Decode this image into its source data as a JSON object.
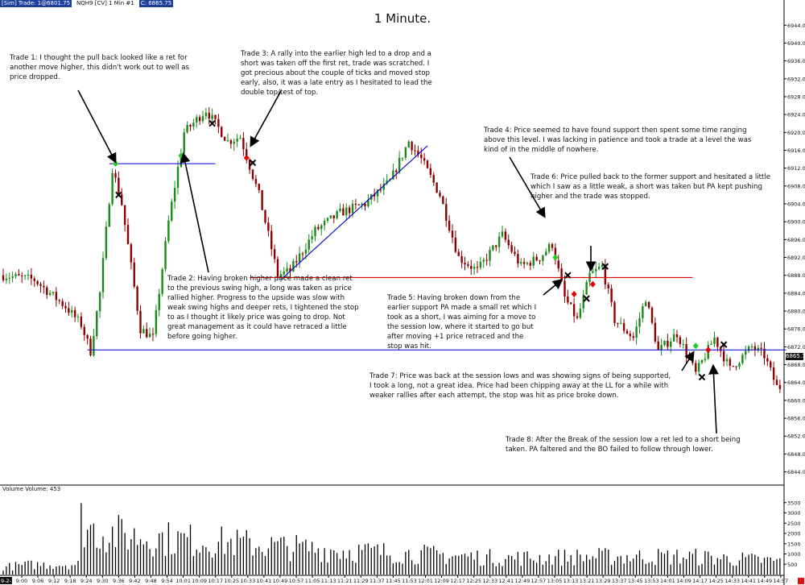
{
  "header": {
    "instrument": "[Sim]  Trade: 1@6801.75",
    "symbol": "NQH9 [CV]  1 Min  #1",
    "last": "C: 6865.75"
  },
  "title": "1 Minute.",
  "volume_label": "Volume  Volume: 453",
  "last_price_tag": "6865.75",
  "annotations": {
    "trade1": "Trade 1:  I thought the pull back looked like a ret for another move higher, this didn't work out to well as price dropped.",
    "trade2": "Trade 2:  Having broken higher price made a clean ret to the previous swing high, a long was taken as price rallied higher.  Progress to the upside was slow with weak swing highs and deeper rets, I tightened the stop to as I thought it likely price was going to drop.  Not great management as it could have retraced a little before going higher.",
    "trade3": "Trade 3:  A rally into the earlier high led to a drop and a short was taken off the first ret, trade was scratched.  I got precious about the couple of ticks and moved stop early, also, it was a late entry as I hesitated to lead the double top/test of top.",
    "trade4": "Trade 4:  Price seemed to have found support then spent some time ranging above this level.  I was lacking in patience and took a trade at a level the was kind of in the middle of nowhere.",
    "trade5": "Trade 5:  Having broken down from the earlier support PA made a small ret which I took as a short, I was aiming for a move to the session low, where it started to go but after moving +1 price retraced and the stop was hit.",
    "trade6": "Trade 6:  Price pulled back to the former support and hesitated a little which I saw as a little weak, a short was taken but PA kept pushing higher and the trade was stopped.",
    "trade7": "Trade 7:  Price was back at the session lows and was showing signs of being supported, I took a long, not a great idea.  Price had been chipping away at the LL for a while with weaker rallies after each attempt, the stop was hit as price broke down.",
    "trade8": "Trade 8:  After the Break of the session low a ret led to a short being taken.  PA faltered and the BO failed to follow through lower."
  },
  "chart_data": {
    "type": "candlestick",
    "title": "1 Minute.",
    "interval": "1 Min",
    "y_axis_ticks": [
      6944.0,
      6940.0,
      6936.0,
      6932.0,
      6928.0,
      6924.0,
      6920.0,
      6916.0,
      6912.0,
      6908.0,
      6904.0,
      6900.0,
      6896.0,
      6892.0,
      6888.0,
      6884.0,
      6880.0,
      6876.0,
      6872.0,
      6868.0,
      6864.0,
      6860.0,
      6856.0,
      6852.0,
      6848.0,
      6844.0
    ],
    "ylim": [
      6841.4,
      6948.2
    ],
    "x_axis_ticks": [
      "9:00",
      "9:06",
      "9:12",
      "9:18",
      "9:24",
      "9:30",
      "9:36",
      "9:42",
      "9:48",
      "9:54",
      "10:01",
      "10:09",
      "10:17",
      "10:25",
      "10:33",
      "10:41",
      "10:49",
      "10:57",
      "11:05",
      "11:13",
      "11:21",
      "11:29",
      "11:37",
      "11:45",
      "11:53",
      "12:01",
      "12:09",
      "12:17",
      "12:25",
      "12:33",
      "12:41",
      "12:49",
      "12:57",
      "13:05",
      "13:13",
      "13:21",
      "13:29",
      "13:37",
      "13:45",
      "13:53",
      "14:01",
      "14:09",
      "14:17",
      "14:25",
      "14:33",
      "14:41",
      "14:49",
      "14:57"
    ],
    "x_axis_start_label": "9-2-1",
    "volume_ticks": [
      3500,
      3000,
      2500,
      2000,
      1500,
      1000,
      500
    ],
    "volume_ylim": [
      0,
      4000
    ],
    "price_path_anchors": [
      [
        0,
        6888
      ],
      [
        10,
        6887
      ],
      [
        20,
        6881
      ],
      [
        25,
        6877
      ],
      [
        28,
        6871
      ],
      [
        31,
        6884
      ],
      [
        35,
        6912
      ],
      [
        38,
        6904
      ],
      [
        44,
        6876
      ],
      [
        48,
        6874
      ],
      [
        53,
        6900
      ],
      [
        58,
        6920
      ],
      [
        65,
        6925
      ],
      [
        72,
        6918
      ],
      [
        76,
        6919
      ],
      [
        82,
        6906
      ],
      [
        88,
        6888
      ],
      [
        92,
        6889
      ],
      [
        100,
        6898
      ],
      [
        108,
        6902
      ],
      [
        116,
        6904
      ],
      [
        124,
        6909
      ],
      [
        130,
        6918
      ],
      [
        134,
        6914
      ],
      [
        140,
        6906
      ],
      [
        146,
        6892
      ],
      [
        152,
        6889
      ],
      [
        160,
        6897
      ],
      [
        166,
        6890
      ],
      [
        172,
        6892
      ],
      [
        176,
        6895
      ],
      [
        180,
        6883
      ],
      [
        184,
        6878
      ],
      [
        188,
        6888
      ],
      [
        192,
        6890
      ],
      [
        196,
        6878
      ],
      [
        202,
        6874
      ],
      [
        206,
        6883
      ],
      [
        210,
        6871
      ],
      [
        216,
        6875
      ],
      [
        222,
        6866
      ],
      [
        228,
        6874
      ],
      [
        233,
        6867
      ],
      [
        240,
        6872
      ],
      [
        244,
        6870
      ],
      [
        248,
        6863
      ]
    ],
    "volume_anchors": [
      [
        0,
        500
      ],
      [
        8,
        650
      ],
      [
        24,
        700
      ],
      [
        25,
        3600
      ],
      [
        27,
        3200
      ],
      [
        30,
        2900
      ],
      [
        40,
        2600
      ],
      [
        60,
        2300
      ],
      [
        75,
        2100
      ],
      [
        100,
        1700
      ],
      [
        130,
        1400
      ],
      [
        160,
        1100
      ],
      [
        190,
        1200
      ],
      [
        220,
        1200
      ],
      [
        248,
        900
      ]
    ],
    "lines": [
      {
        "name": "Trade 1 level",
        "color": "#0000cc",
        "from": [
          34,
          6913
        ],
        "to": [
          68,
          6913
        ]
      },
      {
        "name": "Session low support",
        "color": "#0000cc",
        "from": [
          27,
          6871.3
        ],
        "to": [
          251,
          6871.3
        ]
      },
      {
        "name": "Trend line",
        "color": "#0000cc",
        "from": [
          89,
          6887
        ],
        "to": [
          136,
          6917
        ]
      },
      {
        "name": "Former support",
        "color": "#e00000",
        "from": [
          79,
          6887.5
        ],
        "to": [
          221,
          6887.5
        ]
      }
    ],
    "markers": [
      {
        "type": "entry-long",
        "color": "#22cc22",
        "x": 36,
        "price": 6913
      },
      {
        "type": "exit",
        "x": 37,
        "price": 6906
      },
      {
        "type": "entry-long",
        "color": "#22cc22",
        "x": 57,
        "price": 6914.8
      },
      {
        "type": "exit",
        "x": 67,
        "price": 6922
      },
      {
        "type": "entry-short",
        "color": "#e00000",
        "x": 78,
        "price": 6914.3
      },
      {
        "type": "exit",
        "x": 80,
        "price": 6913.2
      },
      {
        "type": "entry-long",
        "color": "#22cc22",
        "x": 177,
        "price": 6892
      },
      {
        "type": "exit",
        "x": 181,
        "price": 6888
      },
      {
        "type": "entry-short",
        "color": "#e00000",
        "x": 183,
        "price": 6883.8
      },
      {
        "type": "exit",
        "x": 187,
        "price": 6882.8
      },
      {
        "type": "entry-short",
        "color": "#e00000",
        "x": 189,
        "price": 6886
      },
      {
        "type": "exit",
        "x": 193,
        "price": 6890
      },
      {
        "type": "entry-long",
        "color": "#22cc22",
        "x": 222,
        "price": 6872.2
      },
      {
        "type": "exit",
        "x": 224,
        "price": 6865.2
      },
      {
        "type": "entry-short",
        "color": "#e00000",
        "x": 226,
        "price": 6871.3
      },
      {
        "type": "exit",
        "x": 231,
        "price": 6872.5
      }
    ]
  }
}
